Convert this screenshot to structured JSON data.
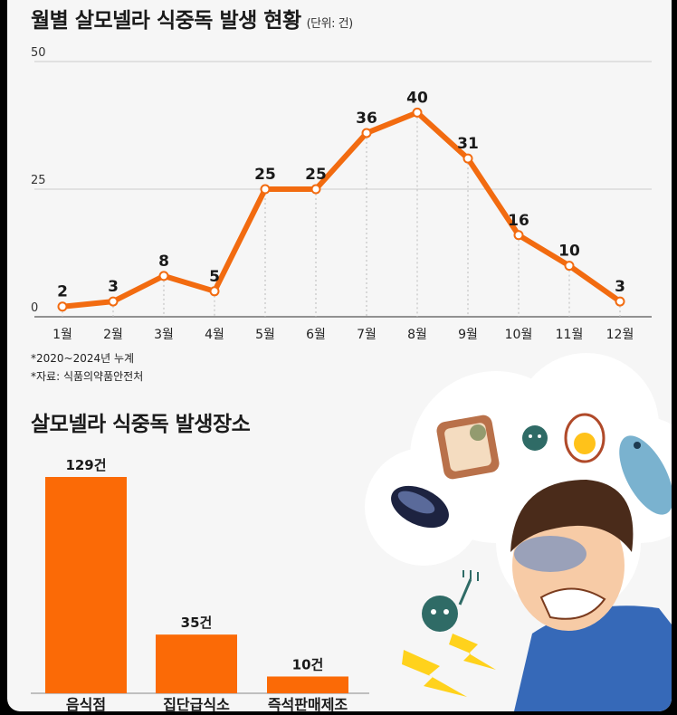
{
  "line_chart": {
    "title": "월별 살모넬라 식중독 발생 현황",
    "unit_label": "(단위: 건)",
    "notes": [
      "*2020~2024년 누계",
      "*자료: 식품의약품안전처"
    ]
  },
  "bar_chart": {
    "title": "살모넬라 식중독 발생장소"
  },
  "colors": {
    "accent": "#f26b10",
    "bar": "#fb6a06",
    "text": "#1a1a1a",
    "grid": "#cccccc"
  },
  "chart_data": [
    {
      "type": "line",
      "title": "월별 살모넬라 식중독 발생 현황",
      "categories": [
        "1월",
        "2월",
        "3월",
        "4월",
        "5월",
        "6월",
        "7월",
        "8월",
        "9월",
        "10월",
        "11월",
        "12월"
      ],
      "values": [
        2,
        3,
        8,
        5,
        25,
        25,
        36,
        40,
        31,
        16,
        10,
        3
      ],
      "yticks": [
        0,
        25,
        50
      ],
      "ylim": [
        0,
        50
      ],
      "unit": "(단위: 건)",
      "grid": true
    },
    {
      "type": "bar",
      "title": "살모넬라 식중독 발생장소",
      "categories": [
        "음식점",
        "집단급식소",
        "즉석판매제조"
      ],
      "values": [
        129,
        35,
        10
      ],
      "value_labels": [
        "129건",
        "35건",
        "10건"
      ]
    }
  ]
}
